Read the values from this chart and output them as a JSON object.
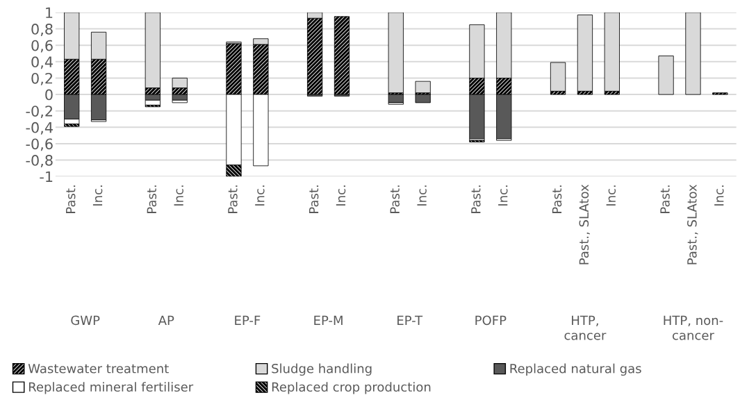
{
  "chart_data": {
    "type": "bar",
    "stacked": true,
    "categories": [
      "Past.",
      "Inc.",
      null,
      "Past.",
      "Inc.",
      null,
      "Past.",
      "Inc.",
      null,
      "Past.",
      "Inc.",
      null,
      "Past.",
      "Inc.",
      null,
      "Past.",
      "Inc.",
      null,
      "Past.",
      "Past., SLAtox",
      "Inc.",
      null,
      "Past.",
      "Past., SLAtox",
      "Inc."
    ],
    "series": [
      {
        "name": "Wastewater treatment",
        "color": "#000000",
        "values": [
          0.43,
          0.43,
          null,
          0.08,
          0.08,
          null,
          0.62,
          0.61,
          null,
          0.93,
          0.95,
          null,
          0.02,
          0.02,
          null,
          0.2,
          0.2,
          null,
          0.04,
          0.04,
          0.04,
          null,
          null,
          null,
          0.02
        ]
      },
      {
        "name": "Sludge handling",
        "color": "#d9d9d9",
        "values": [
          0.57,
          0.33,
          null,
          0.92,
          0.12,
          null,
          0.02,
          0.07,
          null,
          0.07,
          null,
          null,
          0.98,
          0.14,
          null,
          0.65,
          0.8,
          null,
          0.35,
          0.93,
          0.96,
          null,
          0.47,
          1.0,
          null
        ]
      },
      {
        "name": "Replaced natural gas",
        "color": "#595959",
        "values": [
          -0.3,
          -0.31,
          null,
          -0.07,
          -0.07,
          null,
          null,
          null,
          null,
          -0.02,
          -0.02,
          null,
          -0.1,
          -0.1,
          null,
          -0.54,
          -0.54,
          null,
          null,
          null,
          null,
          null,
          null,
          null,
          null
        ]
      },
      {
        "name": "Replaced mineral fertiliser",
        "color": "#ffffff",
        "values": [
          -0.06,
          -0.02,
          null,
          -0.06,
          -0.03,
          null,
          -0.86,
          -0.87,
          null,
          null,
          null,
          null,
          -0.02,
          null,
          null,
          -0.02,
          -0.02,
          null,
          null,
          null,
          null,
          null,
          null,
          null,
          null
        ]
      },
      {
        "name": "Replaced crop production",
        "color": "#000000",
        "values": [
          -0.03,
          null,
          null,
          -0.02,
          null,
          null,
          -0.14,
          null,
          null,
          null,
          null,
          null,
          null,
          null,
          null,
          -0.02,
          null,
          null,
          null,
          null,
          null,
          null,
          null,
          null,
          null
        ]
      }
    ],
    "annotations": [
      "GWP",
      "AP",
      "EP-F",
      "EP-M",
      "EP-T",
      "POFP",
      "HTP, cancer",
      "HTP, non-cancer"
    ],
    "ylim": [
      -1,
      1
    ],
    "yticks": [
      {
        "value": -1,
        "label": "-1"
      },
      {
        "value": -0.8,
        "label": "-0,8"
      },
      {
        "value": -0.6,
        "label": "-0,6"
      },
      {
        "value": -0.4,
        "label": "-0,4"
      },
      {
        "value": -0.2,
        "label": "-0,2"
      },
      0,
      {
        "value": 0.2,
        "label": "0,2"
      },
      {
        "value": 0.4,
        "label": "0,4"
      },
      {
        "value": 0.6,
        "label": "0,6"
      },
      {
        "value": 0.8,
        "label": "0,8"
      },
      1
    ],
    "grid": "y",
    "legend": "bottom"
  }
}
